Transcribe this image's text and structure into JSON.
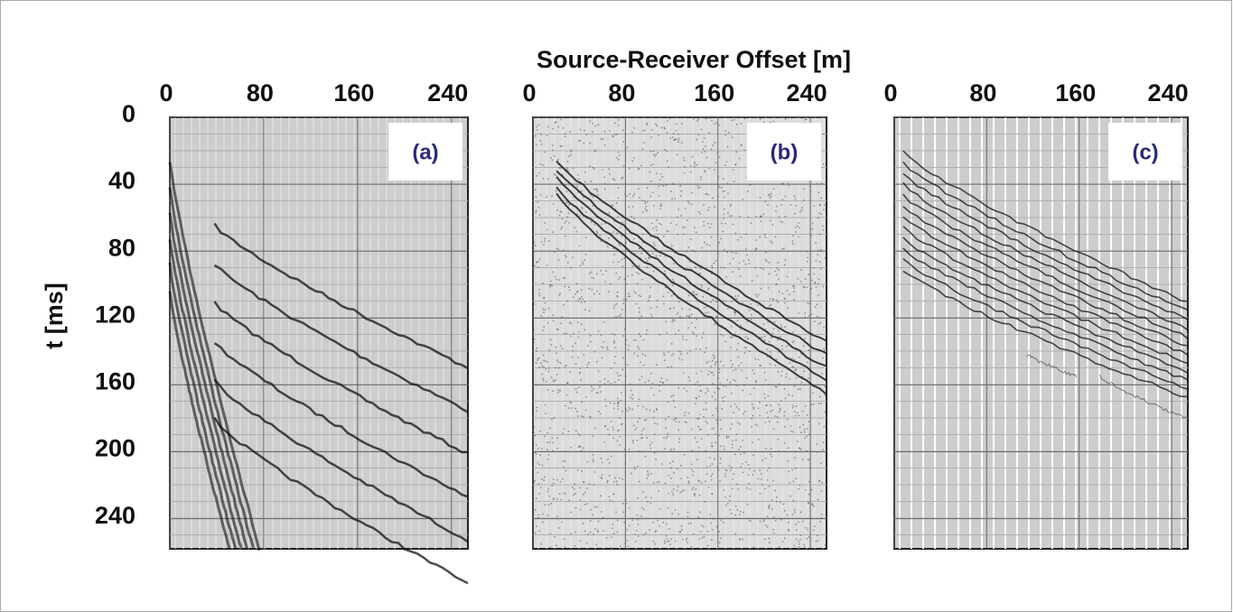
{
  "figure": {
    "x_label": "Source-Receiver Offset [m]",
    "y_label": "t [ms]"
  },
  "chart_data": [
    {
      "type": "seismic",
      "panel_label": "(a)",
      "xlim": [
        0,
        254
      ],
      "xticks": [
        0,
        80,
        160,
        240
      ],
      "ylim": [
        0,
        258
      ],
      "yticks": [
        0,
        40,
        80,
        120,
        160,
        200,
        240
      ],
      "grid": true
    },
    {
      "type": "seismic",
      "panel_label": "(b)",
      "xlim": [
        0,
        254
      ],
      "xticks": [
        0,
        80,
        160,
        240
      ],
      "ylim": [
        0,
        258
      ],
      "yticks": [
        0,
        40,
        80,
        120,
        160,
        200,
        240
      ],
      "grid": true
    },
    {
      "type": "seismic",
      "panel_label": "(c)",
      "xlim": [
        0,
        254
      ],
      "xticks": [
        0,
        80,
        160,
        240
      ],
      "ylim": [
        0,
        258
      ],
      "yticks": [
        0,
        40,
        80,
        120,
        160,
        200,
        240
      ],
      "grid": true
    }
  ]
}
